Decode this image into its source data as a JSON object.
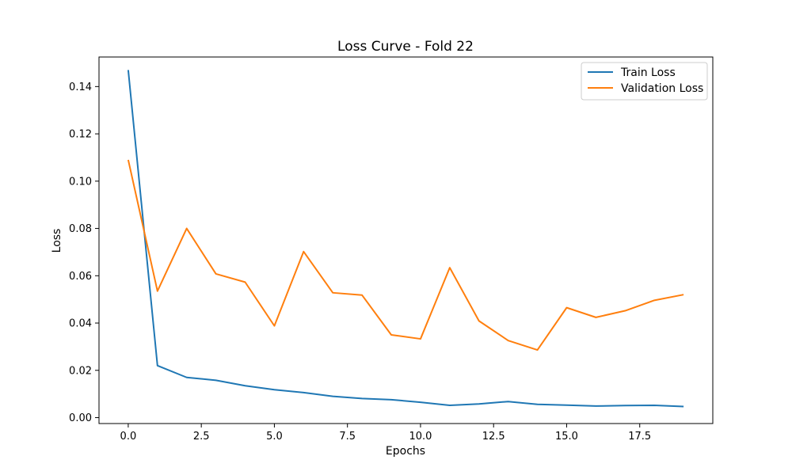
{
  "chart_data": {
    "type": "line",
    "title": "Loss Curve - Fold 22",
    "xlabel": "Epochs",
    "ylabel": "Loss",
    "xlim": [
      -1,
      20
    ],
    "ylim": [
      -0.0025,
      0.1525
    ],
    "x_ticks": [
      0.0,
      2.5,
      5.0,
      7.5,
      10.0,
      12.5,
      15.0,
      17.5
    ],
    "x_tick_labels": [
      "0.0",
      "2.5",
      "5.0",
      "7.5",
      "10.0",
      "12.5",
      "15.0",
      "17.5"
    ],
    "y_ticks": [
      0.0,
      0.02,
      0.04,
      0.06,
      0.08,
      0.1,
      0.12,
      0.14
    ],
    "y_tick_labels": [
      "0.00",
      "0.02",
      "0.04",
      "0.06",
      "0.08",
      "0.10",
      "0.12",
      "0.14"
    ],
    "grid": false,
    "legend_position": "top-right",
    "x": [
      0,
      1,
      2,
      3,
      4,
      5,
      6,
      7,
      8,
      9,
      10,
      11,
      12,
      13,
      14,
      15,
      16,
      17,
      18,
      19
    ],
    "series": [
      {
        "name": "Train Loss",
        "color": "#1f77b4",
        "values": [
          0.147,
          0.022,
          0.017,
          0.0158,
          0.0135,
          0.0118,
          0.0106,
          0.009,
          0.0081,
          0.0076,
          0.0065,
          0.0052,
          0.0058,
          0.0068,
          0.0056,
          0.0053,
          0.0049,
          0.0051,
          0.0052,
          0.0047
        ]
      },
      {
        "name": "Validation Loss",
        "color": "#ff7f0e",
        "values": [
          0.109,
          0.0535,
          0.08,
          0.0608,
          0.0573,
          0.0388,
          0.0702,
          0.0528,
          0.0518,
          0.035,
          0.0333,
          0.0634,
          0.0409,
          0.0326,
          0.0286,
          0.0465,
          0.0424,
          0.0452,
          0.0496,
          0.052
        ]
      }
    ]
  }
}
